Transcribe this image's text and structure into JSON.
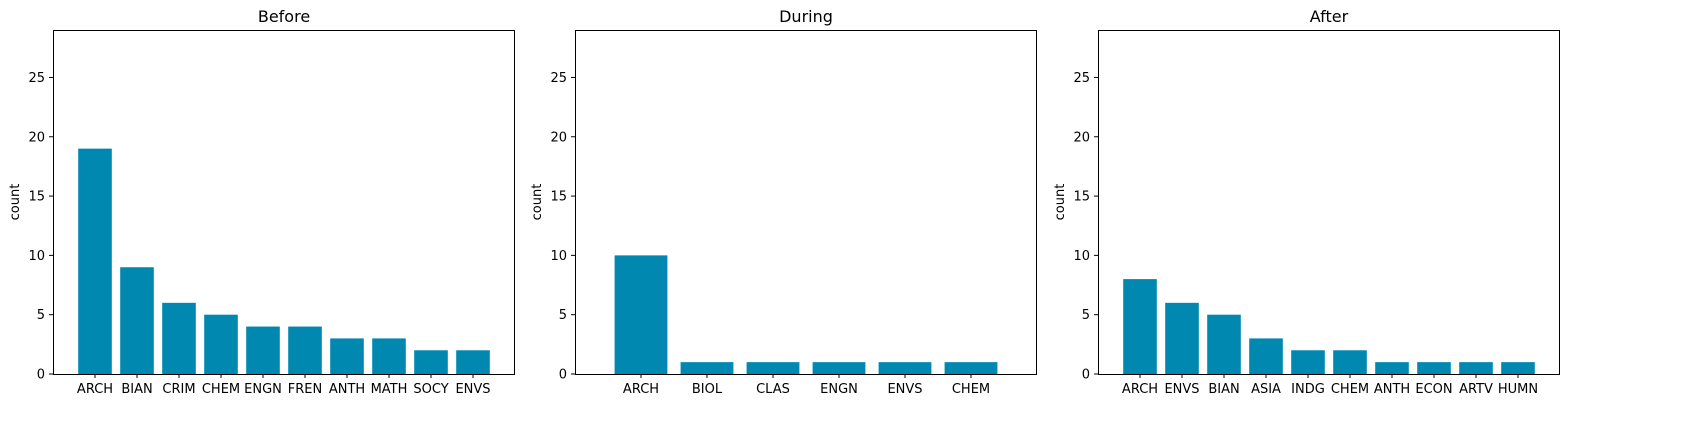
{
  "figure": {
    "bar_color": "#0088b0",
    "background": "#ffffff"
  },
  "chart_data": [
    {
      "type": "bar",
      "title": "Before",
      "xlabel": "",
      "ylabel": "count",
      "ylim": [
        0,
        29
      ],
      "yticks": [
        0,
        5,
        10,
        15,
        20,
        25
      ],
      "grid": false,
      "categories": [
        "ARCH",
        "BIAN",
        "CRIM",
        "CHEM",
        "ENGN",
        "FREN",
        "ANTH",
        "MATH",
        "SOCY",
        "ENVS"
      ],
      "values": [
        19,
        9,
        6,
        5,
        4,
        4,
        3,
        3,
        2,
        2
      ]
    },
    {
      "type": "bar",
      "title": "During",
      "xlabel": "",
      "ylabel": "count",
      "ylim": [
        0,
        29
      ],
      "yticks": [
        0,
        5,
        10,
        15,
        20,
        25
      ],
      "grid": false,
      "categories": [
        "ARCH",
        "BIOL",
        "CLAS",
        "ENGN",
        "ENVS",
        "CHEM"
      ],
      "values": [
        10,
        1,
        1,
        1,
        1,
        1
      ]
    },
    {
      "type": "bar",
      "title": "After",
      "xlabel": "",
      "ylabel": "count",
      "ylim": [
        0,
        29
      ],
      "yticks": [
        0,
        5,
        10,
        15,
        20,
        25
      ],
      "grid": false,
      "categories": [
        "ARCH",
        "ENVS",
        "BIAN",
        "ASIA",
        "INDG",
        "CHEM",
        "ANTH",
        "ECON",
        "ARTV",
        "HUMN"
      ],
      "values": [
        8,
        6,
        5,
        3,
        2,
        2,
        1,
        1,
        1,
        1
      ]
    }
  ]
}
